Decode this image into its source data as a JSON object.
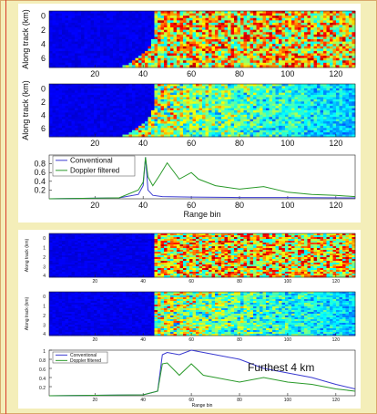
{
  "colors": {
    "background": "#f4eeb9",
    "frame": "#d9a86c",
    "red_line": "#d93b2b",
    "conventional": "#3a3ad0",
    "doppler": "#2a9a2a"
  },
  "top_figure": {
    "image1": {
      "ylabel": "Along track (km)",
      "yticks": [
        "0",
        "2",
        "4",
        "6"
      ],
      "xticks": [
        "20",
        "40",
        "60",
        "80",
        "100",
        "120"
      ]
    },
    "image2": {
      "ylabel": "Along track (km)",
      "yticks": [
        "0",
        "2",
        "4",
        "6"
      ],
      "xticks": [
        "20",
        "40",
        "60",
        "80",
        "100",
        "120"
      ]
    },
    "plot": {
      "legend": [
        "Conventional",
        "Doppler filtered"
      ],
      "xlabel": "Range bin",
      "yticks": [
        "0.2",
        "0.4",
        "0.6",
        "0.8"
      ],
      "xticks": [
        "20",
        "40",
        "60",
        "80",
        "100",
        "120"
      ]
    }
  },
  "bottom_figure": {
    "image1": {
      "ylabel": "Along track (km)",
      "yticks": [
        "0",
        "1",
        "2",
        "3",
        "4"
      ],
      "xticks": [
        "20",
        "40",
        "60",
        "80",
        "100",
        "120"
      ]
    },
    "image2": {
      "ylabel": "Along track (km)",
      "yticks": [
        "0",
        "1",
        "2",
        "3",
        "4"
      ],
      "xticks": [
        "20",
        "40",
        "60",
        "80",
        "100",
        "120"
      ]
    },
    "plot": {
      "legend": [
        "Conventional",
        "Doppler filtered"
      ],
      "xlabel": "Range bin",
      "yticks": [
        "0.2",
        "0.4",
        "0.6",
        "0.8",
        "1"
      ],
      "xticks": [
        "20",
        "40",
        "60",
        "80",
        "100",
        "120"
      ]
    },
    "annotation": "Furthest 4 km"
  },
  "chart_data": [
    {
      "type": "heatmap",
      "xlabel": "",
      "ylabel": "Along track (km)",
      "xlim": [
        1,
        128
      ],
      "ylim": [
        0,
        7
      ],
      "note_color": "low returns below range bin ~45, noisy high returns beyond"
    },
    {
      "type": "heatmap",
      "xlabel": "",
      "ylabel": "Along track (km)",
      "xlim": [
        1,
        128
      ],
      "ylim": [
        0,
        7
      ]
    },
    {
      "type": "line",
      "xlabel": "Range bin",
      "ylim": [
        0,
        1
      ],
      "xlim": [
        1,
        128
      ],
      "series": [
        {
          "name": "Conventional",
          "x": [
            1,
            30,
            38,
            40,
            41,
            42,
            44,
            48,
            60,
            80,
            100,
            128
          ],
          "y": [
            0.0,
            0.02,
            0.1,
            0.3,
            0.95,
            0.2,
            0.08,
            0.05,
            0.04,
            0.03,
            0.03,
            0.02
          ]
        },
        {
          "name": "Doppler filtered",
          "x": [
            1,
            30,
            38,
            40,
            41,
            42,
            44,
            47,
            50,
            55,
            60,
            63,
            70,
            80,
            90,
            100,
            110,
            120,
            128
          ],
          "y": [
            0.0,
            0.02,
            0.2,
            0.38,
            0.95,
            0.5,
            0.3,
            0.55,
            0.82,
            0.45,
            0.6,
            0.45,
            0.3,
            0.22,
            0.28,
            0.15,
            0.1,
            0.08,
            0.05
          ]
        }
      ]
    },
    {
      "type": "heatmap",
      "xlabel": "",
      "ylabel": "Along track (km)",
      "xlim": [
        1,
        128
      ],
      "ylim": [
        0,
        4
      ]
    },
    {
      "type": "heatmap",
      "xlabel": "",
      "ylabel": "Along track (km)",
      "xlim": [
        1,
        128
      ],
      "ylim": [
        0,
        4
      ]
    },
    {
      "type": "line",
      "xlabel": "Range bin",
      "ylim": [
        0,
        1
      ],
      "xlim": [
        1,
        128
      ],
      "series": [
        {
          "name": "Conventional",
          "x": [
            1,
            40,
            46,
            48,
            50,
            55,
            60,
            70,
            80,
            90,
            100,
            110,
            120,
            128
          ],
          "y": [
            0.0,
            0.02,
            0.1,
            0.9,
            0.95,
            0.9,
            1.0,
            0.9,
            0.8,
            0.6,
            0.5,
            0.4,
            0.25,
            0.15
          ]
        },
        {
          "name": "Doppler filtered",
          "x": [
            1,
            40,
            46,
            48,
            50,
            55,
            60,
            65,
            70,
            80,
            90,
            100,
            110,
            120,
            128
          ],
          "y": [
            0.0,
            0.02,
            0.1,
            0.7,
            0.72,
            0.45,
            0.7,
            0.45,
            0.4,
            0.3,
            0.4,
            0.3,
            0.25,
            0.15,
            0.1
          ]
        }
      ]
    }
  ]
}
